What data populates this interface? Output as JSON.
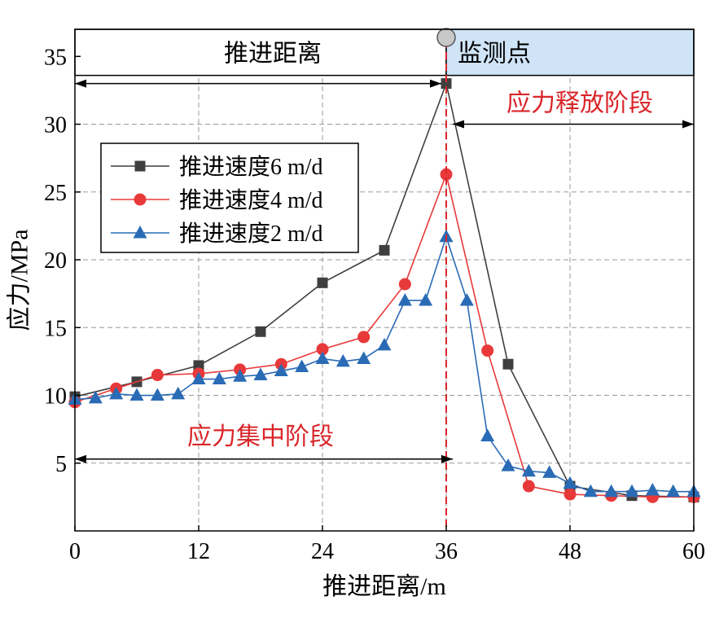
{
  "chart_data": {
    "type": "line",
    "xlabel": "推进距离/m",
    "ylabel": "应力/MPa",
    "xlim": [
      0,
      60
    ],
    "ylim": [
      0,
      37
    ],
    "xticks": [
      0,
      12,
      24,
      36,
      48,
      60
    ],
    "yticks": [
      5,
      10,
      15,
      20,
      25,
      30,
      35
    ],
    "grid": true,
    "legend_position": "upper-left",
    "colors": {
      "axis": "#000000",
      "grid": "#9a9a9a",
      "annotation": "#d9262a",
      "panel_right": "#cfe4f6",
      "marker_circle": "#c8c8c8"
    },
    "series": [
      {
        "name": "推进速度6 m/d",
        "color": "#3f3f3f",
        "marker": "square",
        "x": [
          0,
          6,
          12,
          18,
          24,
          30,
          36,
          42,
          48,
          54,
          60
        ],
        "y": [
          9.9,
          11.0,
          12.2,
          14.7,
          18.3,
          20.7,
          33.0,
          12.3,
          3.3,
          2.6,
          2.5
        ]
      },
      {
        "name": "推进速度4 m/d",
        "color": "#e8393a",
        "marker": "circle",
        "x": [
          0,
          4,
          8,
          12,
          16,
          20,
          24,
          28,
          32,
          36,
          40,
          44,
          48,
          52,
          56,
          60
        ],
        "y": [
          9.5,
          10.5,
          11.5,
          11.6,
          11.9,
          12.3,
          13.4,
          14.3,
          18.2,
          26.3,
          13.3,
          3.3,
          2.7,
          2.6,
          2.5,
          2.5
        ]
      },
      {
        "name": "推进速度2 m/d",
        "color": "#2a6bb5",
        "marker": "triangle",
        "x": [
          0,
          2,
          4,
          6,
          8,
          10,
          12,
          14,
          16,
          18,
          20,
          22,
          24,
          26,
          28,
          30,
          32,
          34,
          36,
          38,
          40,
          42,
          44,
          46,
          48,
          50,
          52,
          54,
          56,
          58,
          60
        ],
        "y": [
          9.7,
          9.8,
          10.1,
          10.0,
          10.0,
          10.1,
          11.2,
          11.2,
          11.4,
          11.5,
          11.8,
          12.1,
          12.7,
          12.5,
          12.7,
          13.7,
          17.0,
          17.0,
          21.7,
          17.0,
          7.0,
          4.8,
          4.4,
          4.3,
          3.5,
          2.9,
          2.9,
          2.9,
          3.0,
          2.9,
          2.9
        ]
      }
    ],
    "annotations": {
      "advance_distance": "推进距离",
      "monitoring_point": "监测点",
      "stress_release": "应力释放阶段",
      "stress_concentration": "应力集中阶段",
      "monitor_x": 36,
      "top_arrow": {
        "x_start": 0,
        "x_end": 36,
        "y": 33.0
      },
      "release_arrow": {
        "x_start": 36,
        "x_end": 60,
        "y": 30.0
      },
      "concentration_arrow": {
        "x_start": 0,
        "x_end": 36,
        "y": 5.3
      },
      "header_band": {
        "y_low": 33.6,
        "y_high": 37.0
      }
    }
  }
}
